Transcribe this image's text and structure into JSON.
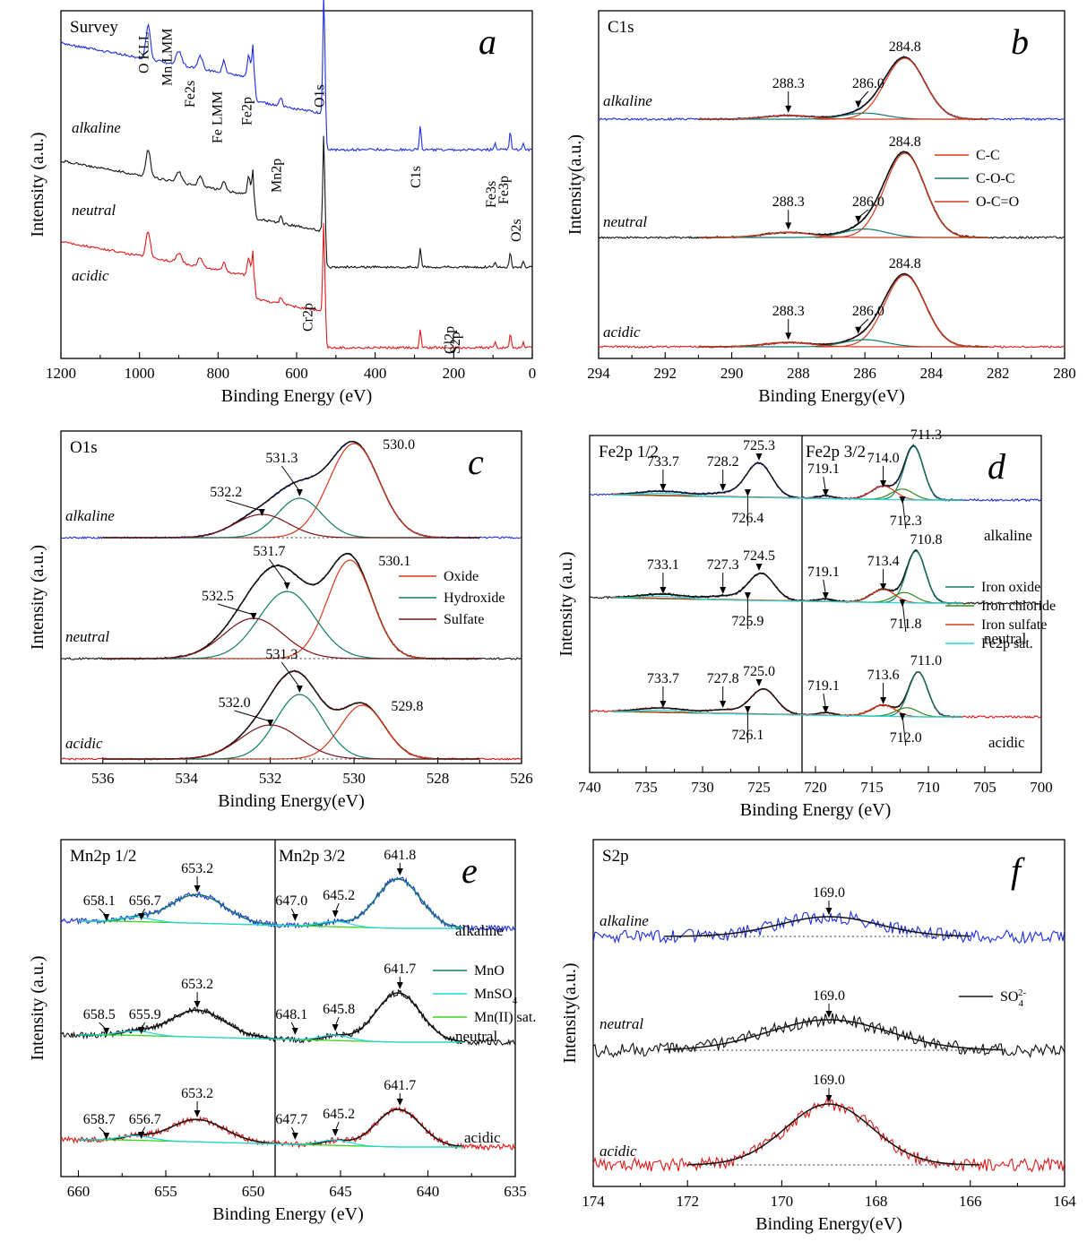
{
  "figure": {
    "width": 1213,
    "height": 1386
  },
  "colors": {
    "blue": "#1f2fe0",
    "black": "#111111",
    "red": "#e01818",
    "fit_red": "#d43a1a",
    "fit_teal": "#127a6a",
    "fit_brown": "#7a1010",
    "fit_green": "#2c8a18",
    "fit_cyan": "#20d8e0",
    "fit_bright_green": "#3cd61e"
  },
  "chart_data": [
    {
      "id": "a",
      "type": "line",
      "title": "Survey",
      "panel_letter": "a",
      "xlabel": "Binding Energy (eV)",
      "ylabel": "Intensity (a.u.)",
      "xlim": [
        1200,
        0
      ],
      "x_reversed": true,
      "xticks": [
        1200,
        1000,
        800,
        600,
        400,
        200,
        0
      ],
      "series": [
        {
          "name": "alkaline",
          "color": "blue"
        },
        {
          "name": "neutral",
          "color": "black"
        },
        {
          "name": "acidic",
          "color": "red"
        }
      ],
      "annotations": [
        "O KLL",
        "Mn LMM",
        "Fe2s",
        "Fe LMM",
        "Fe2p",
        "Mn2p",
        "O1s",
        "C1s",
        "Cr2p",
        "Fe3s",
        "Fe3p",
        "O2s",
        "Cl2p",
        "S2p"
      ]
    },
    {
      "id": "b",
      "type": "line",
      "title": "C1s",
      "panel_letter": "b",
      "xlabel": "Binding Energy(eV)",
      "ylabel": "Intensity(a.u.)",
      "xlim": [
        294,
        280
      ],
      "x_reversed": true,
      "xticks": [
        294,
        292,
        290,
        288,
        286,
        284,
        282,
        280
      ],
      "series": [
        {
          "name": "alkaline",
          "color": "blue"
        },
        {
          "name": "neutral",
          "color": "black"
        },
        {
          "name": "acidic",
          "color": "red"
        }
      ],
      "legend": [
        {
          "name": "C-C",
          "color": "fit_red"
        },
        {
          "name": "C-O-C",
          "color": "fit_teal"
        },
        {
          "name": "O-C=O",
          "color": "fit_red"
        }
      ],
      "peaks": {
        "alkaline": [
          "288.3",
          "286.0",
          "284.8"
        ],
        "neutral": [
          "288.3",
          "286.0",
          "284.8"
        ],
        "acidic": [
          "288.3",
          "286.0",
          "284.8"
        ]
      }
    },
    {
      "id": "c",
      "type": "line",
      "title": "O1s",
      "panel_letter": "c",
      "xlabel": "Binding Energy(eV)",
      "ylabel": "Intensity (a.u.)",
      "xlim": [
        537,
        526
      ],
      "x_reversed": true,
      "xticks": [
        536,
        534,
        532,
        530,
        528,
        526
      ],
      "series": [
        {
          "name": "alkaline",
          "color": "blue"
        },
        {
          "name": "neutral",
          "color": "black"
        },
        {
          "name": "acidic",
          "color": "red"
        }
      ],
      "legend": [
        {
          "name": "Oxide",
          "color": "fit_red"
        },
        {
          "name": "Hydroxide",
          "color": "fit_teal"
        },
        {
          "name": "Sulfate",
          "color": "fit_brown"
        }
      ],
      "peaks": {
        "alkaline": [
          "532.2",
          "531.3",
          "530.0"
        ],
        "neutral": [
          "532.5",
          "531.7",
          "530.1"
        ],
        "acidic": [
          "532.0",
          "531.3",
          "529.8"
        ]
      }
    },
    {
      "id": "d",
      "type": "line",
      "title": "Fe2p 1/2",
      "title2": "Fe2p 3/2",
      "panel_letter": "d",
      "xlabel": "Binding Energy (eV)",
      "ylabel": "Intensity (a.u.)",
      "xlim": [
        740,
        700
      ],
      "x_reversed": true,
      "xticks": [
        740,
        735,
        730,
        725,
        720,
        715,
        710,
        705,
        700
      ],
      "series": [
        {
          "name": "alkaline",
          "color": "blue"
        },
        {
          "name": "neutral",
          "color": "black"
        },
        {
          "name": "acidic",
          "color": "red"
        }
      ],
      "legend": [
        {
          "name": "Iron oxide",
          "color": "fit_teal"
        },
        {
          "name": "Iron chloride",
          "color": "fit_green"
        },
        {
          "name": "Iron sulfate",
          "color": "fit_red"
        },
        {
          "name": "Fe2p sat.",
          "color": "fit_cyan"
        }
      ],
      "peaks": {
        "alkaline": [
          "733.7",
          "728.2",
          "725.3",
          "726.4",
          "719.1",
          "714.0",
          "711.3",
          "712.3"
        ],
        "neutral": [
          "733.1",
          "727.3",
          "724.5",
          "725.9",
          "719.1",
          "713.4",
          "710.8",
          "711.8"
        ],
        "acidic": [
          "733.7",
          "727.8",
          "725.0",
          "726.1",
          "719.1",
          "713.6",
          "711.0",
          "712.0"
        ]
      }
    },
    {
      "id": "e",
      "type": "line",
      "title": "Mn2p 1/2",
      "title2": "Mn2p 3/2",
      "panel_letter": "e",
      "xlabel": "Binding Energy (eV)",
      "ylabel": "Intensity (a.u.)",
      "xlim": [
        661,
        635
      ],
      "x_reversed": true,
      "xticks": [
        660,
        655,
        650,
        645,
        640,
        635
      ],
      "series": [
        {
          "name": "alkaline",
          "color": "blue"
        },
        {
          "name": "neutral",
          "color": "black"
        },
        {
          "name": "acidic",
          "color": "red"
        }
      ],
      "legend": [
        {
          "name": "MnO",
          "color": "fit_teal"
        },
        {
          "name": "MnSO",
          "sub": "4",
          "color": "fit_cyan"
        },
        {
          "name": "Mn(II) sat.",
          "color": "fit_bright_green"
        }
      ],
      "peaks": {
        "alkaline": [
          "658.1",
          "656.7",
          "653.2",
          "647.0",
          "645.2",
          "641.8"
        ],
        "neutral": [
          "658.5",
          "655.9",
          "653.2",
          "648.1",
          "645.8",
          "641.7"
        ],
        "acidic": [
          "658.7",
          "656.7",
          "653.2",
          "647.7",
          "645.2",
          "641.7"
        ]
      }
    },
    {
      "id": "f",
      "type": "line",
      "title": "S2p",
      "panel_letter": "f",
      "xlabel": "Binding Energy(eV)",
      "ylabel": "Intensity(a.u.)",
      "xlim": [
        174,
        164
      ],
      "x_reversed": true,
      "xticks": [
        174,
        172,
        170,
        168,
        166,
        164
      ],
      "series": [
        {
          "name": "alkaline",
          "color": "blue"
        },
        {
          "name": "neutral",
          "color": "black"
        },
        {
          "name": "acidic",
          "color": "red"
        }
      ],
      "legend": [
        {
          "name": "SO",
          "sub": "4",
          "sup": "2-",
          "color": "black"
        }
      ],
      "peaks": {
        "alkaline": [
          "169.0"
        ],
        "neutral": [
          "169.0"
        ],
        "acidic": [
          "169.0"
        ]
      }
    }
  ]
}
